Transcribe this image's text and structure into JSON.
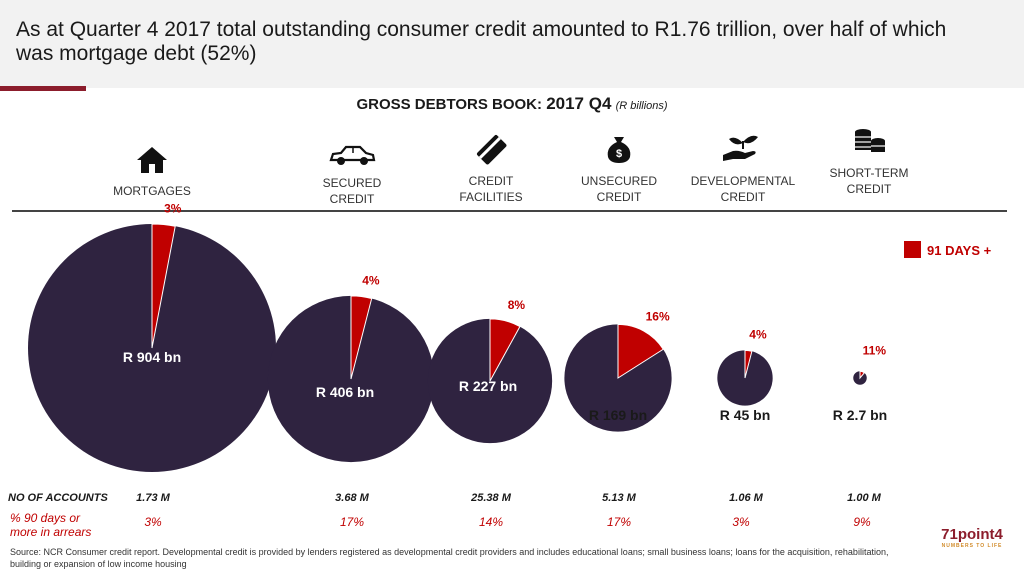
{
  "header": {
    "title": "As at Quarter 4 2017 total outstanding consumer credit amounted to R1.76 trillion, over half of which was mortgage debt (52%)"
  },
  "chart_title": {
    "main": "GROSS DEBTORS BOOK:",
    "period": "2017 Q4",
    "unit": "(R billions)"
  },
  "categories": [
    {
      "key": "mortgages",
      "line1": "MORTGAGES",
      "line2": "",
      "icon": "house-icon"
    },
    {
      "key": "secured",
      "line1": "SECURED",
      "line2": "CREDIT",
      "icon": "car-icon"
    },
    {
      "key": "facilities",
      "line1": "CREDIT",
      "line2": "FACILITIES",
      "icon": "credit-card-icon"
    },
    {
      "key": "unsecured",
      "line1": "UNSECURED",
      "line2": "CREDIT",
      "icon": "money-bag-icon"
    },
    {
      "key": "developmental",
      "line1": "DEVELOPMENTAL",
      "line2": "CREDIT",
      "icon": "hand-plant-icon"
    },
    {
      "key": "shortterm",
      "line1": "SHORT-TERM",
      "line2": "CREDIT",
      "icon": "coins-icon"
    }
  ],
  "chart_data": {
    "type": "pie",
    "title": "GROSS DEBTORS BOOK: 2017 Q4 (R billions)",
    "categories": [
      "Mortgages",
      "Secured credit",
      "Credit facilities",
      "Unsecured credit",
      "Developmental credit",
      "Short-term credit"
    ],
    "totals_r_bn": [
      904,
      406,
      227,
      169,
      45,
      2.7
    ],
    "total_labels": [
      "R 904 bn",
      "R 406 bn",
      "R 227 bn",
      "R 169 bn",
      "R 45 bn",
      "R 2.7 bn"
    ],
    "series": [
      {
        "name": "91 days +",
        "values_pct": [
          3,
          4,
          8,
          16,
          4,
          11
        ],
        "labels": [
          "3%",
          "4%",
          "8%",
          "16%",
          "4%",
          "11%"
        ]
      }
    ],
    "legend": {
      "label": "91 DAYS +",
      "position": "top-right"
    },
    "colors": {
      "arrears": "#c00000",
      "book": "#2f2340",
      "outline": "#ffffff"
    }
  },
  "table": {
    "accounts_label": "NO OF ACCOUNTS",
    "accounts": [
      "1.73 M",
      "3.68 M",
      "25.38 M",
      "5.13 M",
      "1.06 M",
      "1.00 M"
    ],
    "arrears_label_line1": "% 90 days or",
    "arrears_label_line2": "more in arrears",
    "arrears": [
      "3%",
      "17%",
      "14%",
      "17%",
      "3%",
      "9%"
    ]
  },
  "source": "Source: NCR Consumer credit report. Developmental credit is provided by lenders registered as developmental credit providers and  includes educational loans; small business loans; loans for the acquisition, rehabilitation, building or expansion of low income housing",
  "logo": {
    "name": "71point4",
    "tagline": "NUMBERS TO LIFE"
  }
}
